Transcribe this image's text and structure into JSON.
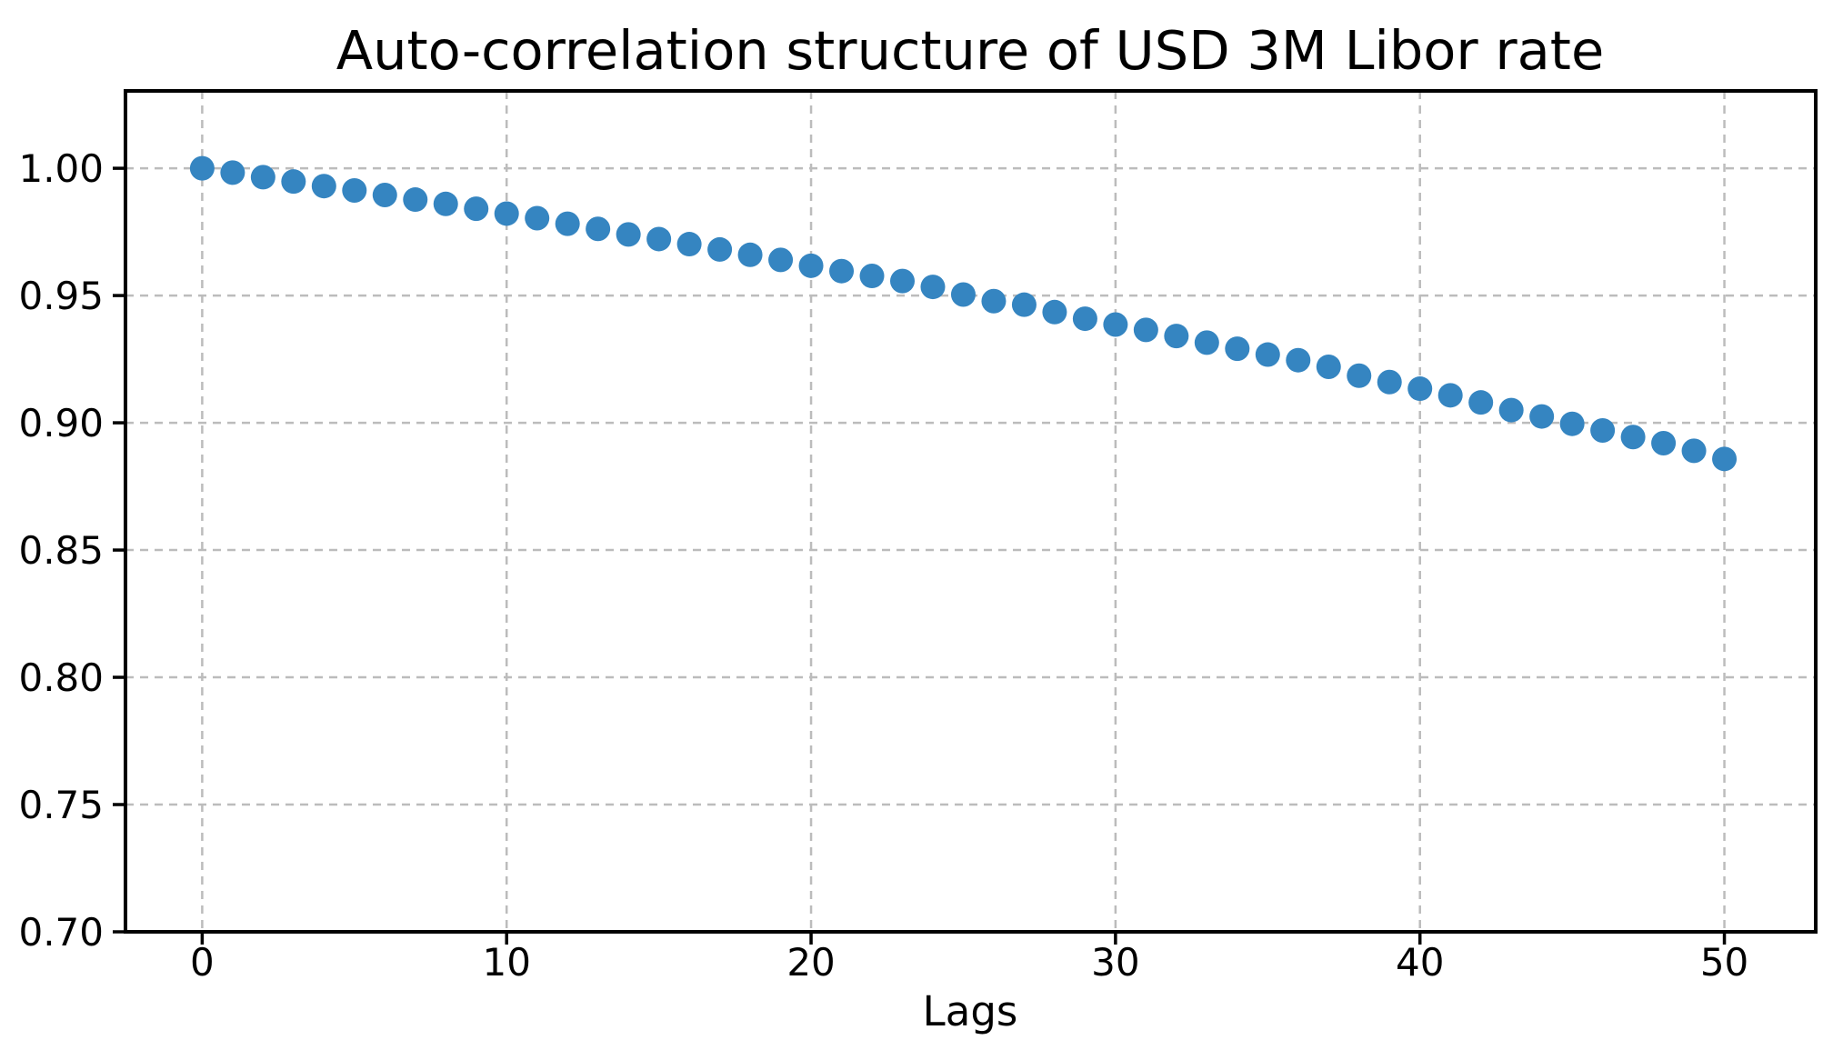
{
  "chart_data": {
    "type": "scatter",
    "title": "Auto-correlation structure of USD 3M Libor rate",
    "xlabel": "Lags",
    "ylabel": "",
    "x": [
      0,
      1,
      2,
      3,
      4,
      5,
      6,
      7,
      8,
      9,
      10,
      11,
      12,
      13,
      14,
      15,
      16,
      17,
      18,
      19,
      20,
      21,
      22,
      23,
      24,
      25,
      26,
      27,
      28,
      29,
      30,
      31,
      32,
      33,
      34,
      35,
      36,
      37,
      38,
      39,
      40,
      41,
      42,
      43,
      44,
      45,
      46,
      47,
      48,
      49,
      50
    ],
    "y": [
      1.0,
      0.9983,
      0.9965,
      0.9948,
      0.993,
      0.9913,
      0.9895,
      0.9877,
      0.986,
      0.9841,
      0.9822,
      0.9804,
      0.9782,
      0.9762,
      0.974,
      0.9722,
      0.9702,
      0.9681,
      0.966,
      0.964,
      0.9617,
      0.9596,
      0.9577,
      0.9557,
      0.9534,
      0.9504,
      0.9478,
      0.9464,
      0.9435,
      0.9409,
      0.9386,
      0.9365,
      0.9341,
      0.9315,
      0.9291,
      0.9268,
      0.9246,
      0.922,
      0.9185,
      0.916,
      0.9134,
      0.9108,
      0.908,
      0.905,
      0.9025,
      0.8996,
      0.897,
      0.8944,
      0.892,
      0.889,
      0.8858
    ],
    "xlim": [
      -2.52,
      53.0
    ],
    "ylim": [
      0.7,
      1.0304
    ],
    "xticks": {
      "values": [
        0,
        10,
        20,
        30,
        40,
        50
      ],
      "labels": [
        "0",
        "10",
        "20",
        "30",
        "40",
        "50"
      ]
    },
    "yticks": {
      "values": [
        0.7,
        0.75,
        0.8,
        0.85,
        0.9,
        0.95,
        1.0
      ],
      "labels": [
        "0.70",
        "0.75",
        "0.80",
        "0.85",
        "0.90",
        "0.95",
        "1.00"
      ]
    },
    "grid": true,
    "grid_style": "dashed",
    "legend": null,
    "marker": {
      "shape": "circle",
      "color": "#3585c1",
      "radius_px": 13.5
    },
    "colors": {
      "background": "#ffffff",
      "grid": "#bcbcbc",
      "spine": "#000000",
      "tick": "#000000",
      "text": "#000000",
      "point": "#3585c1"
    }
  }
}
